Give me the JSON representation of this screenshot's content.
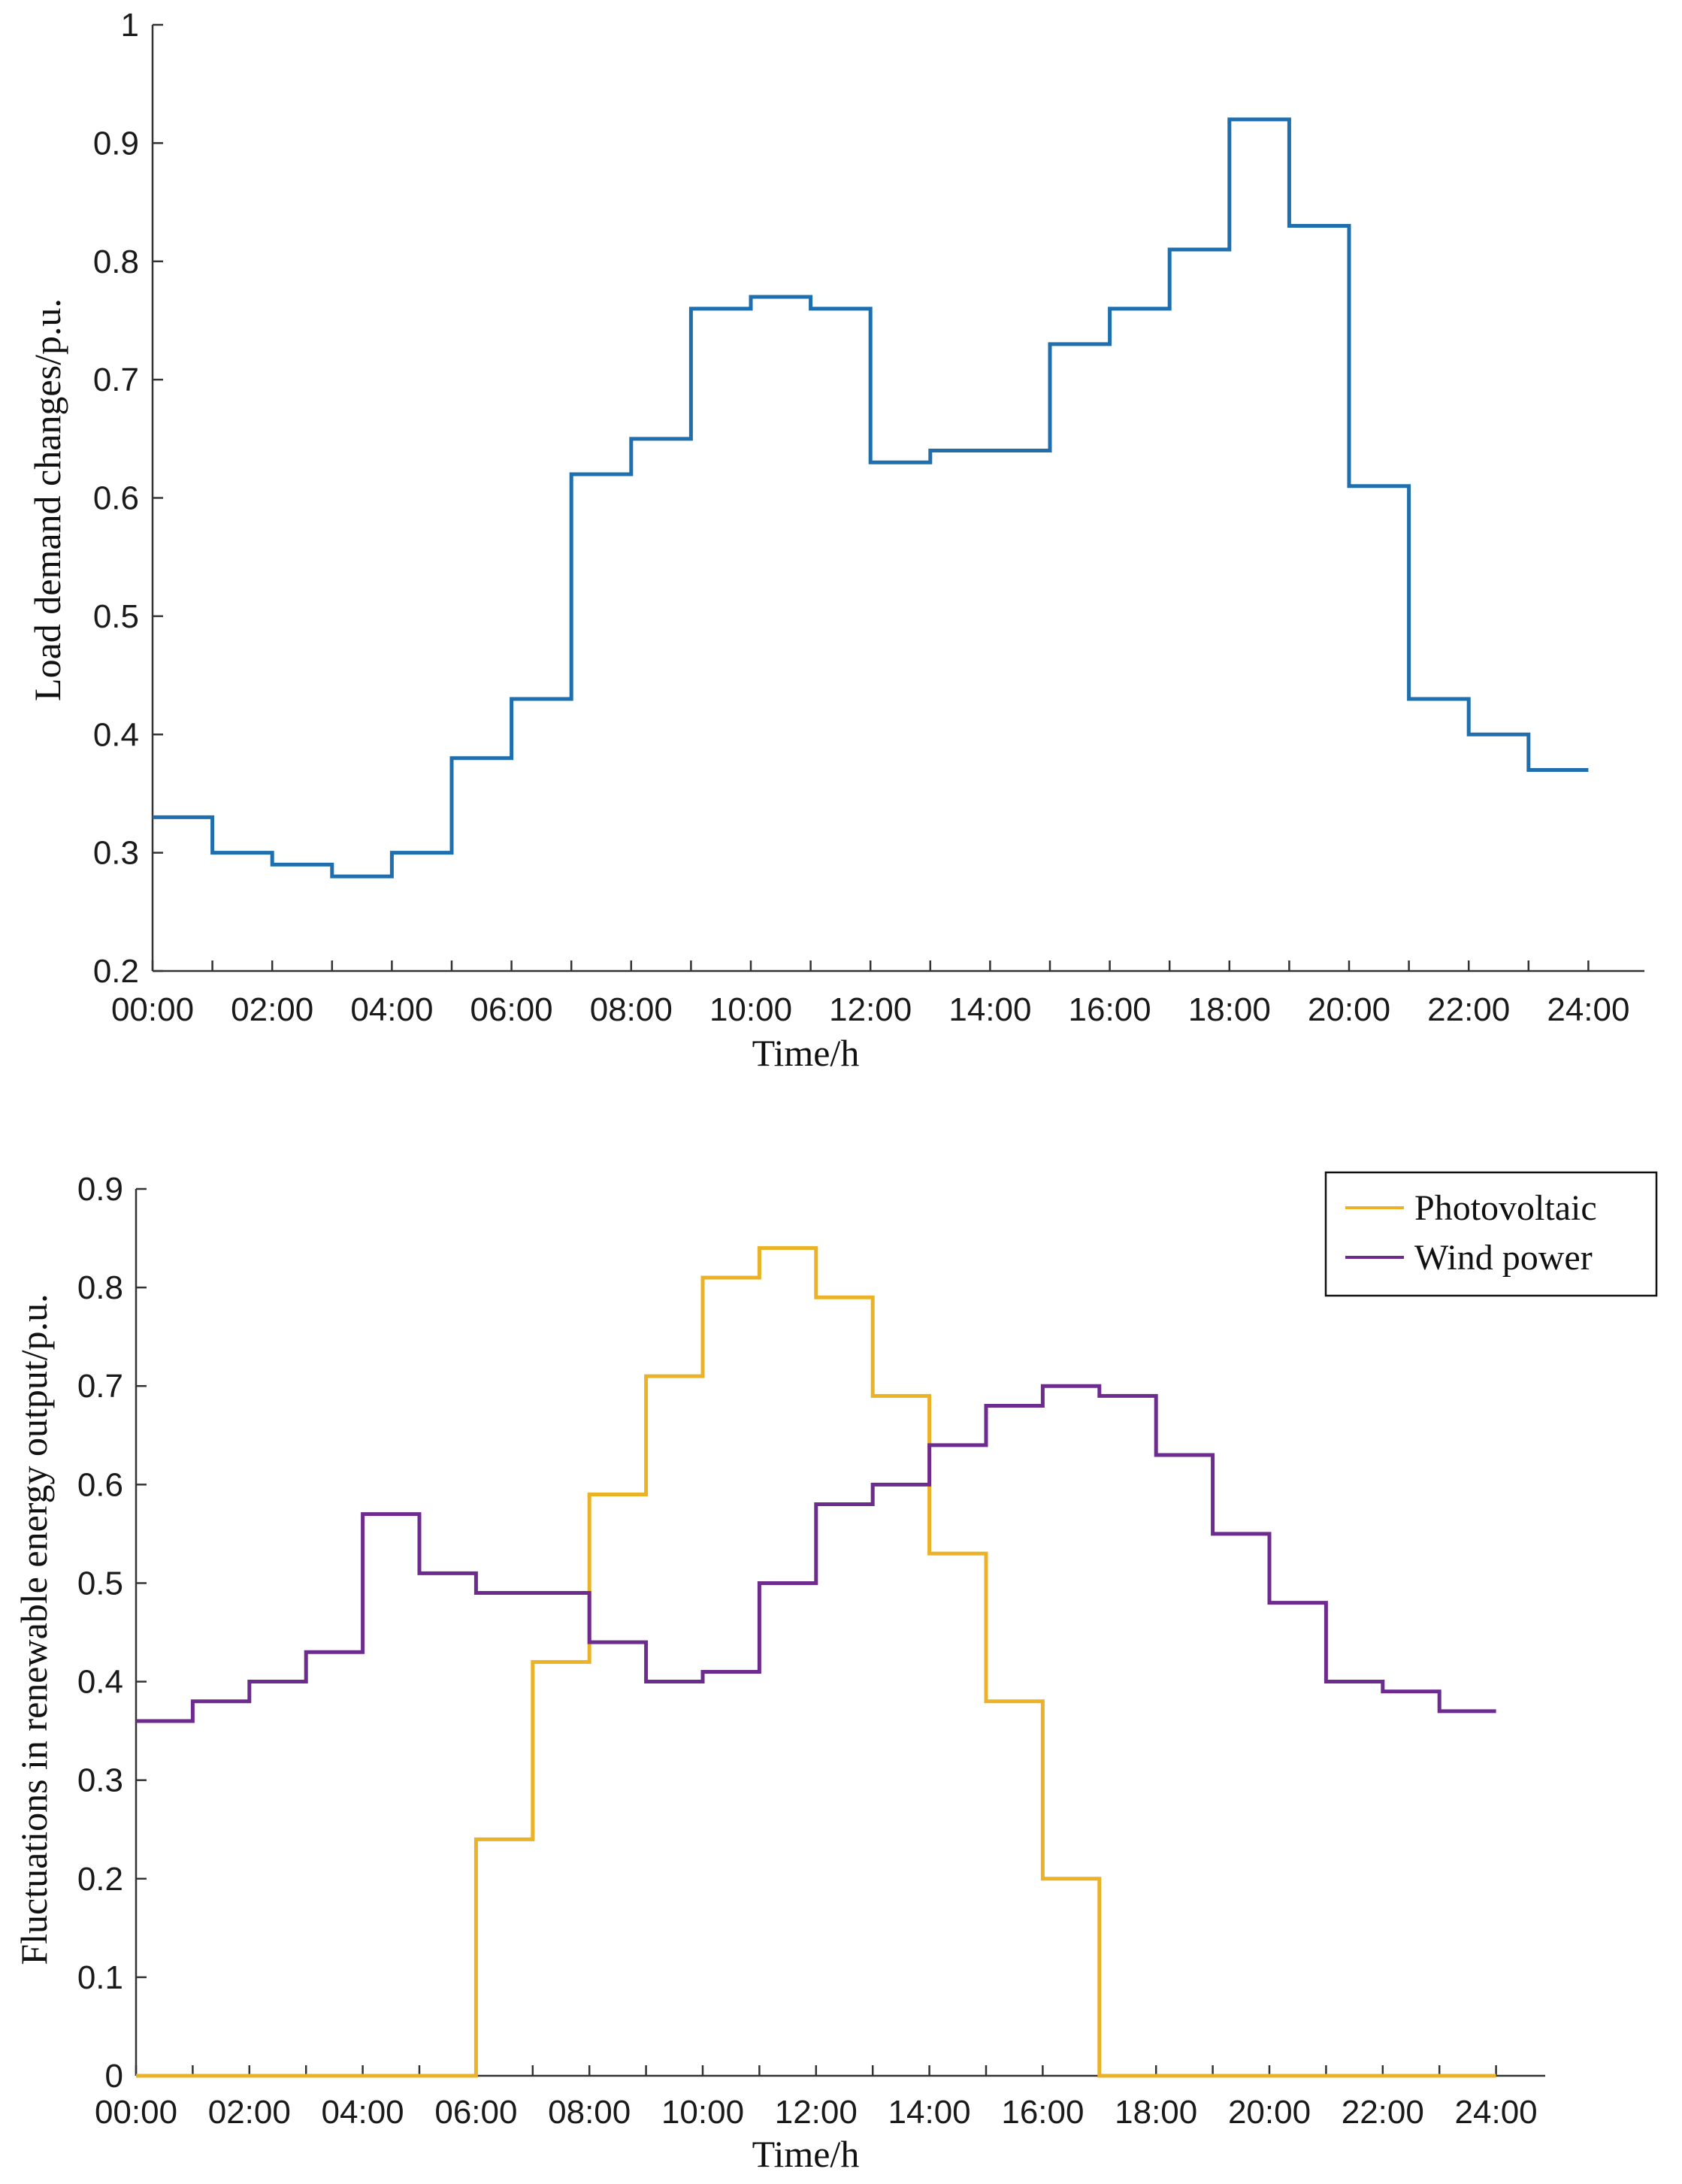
{
  "chart_data": [
    {
      "type": "line",
      "step": "post",
      "title": "",
      "xlabel": "Time/h",
      "ylabel": "Load demand changes/p.u.",
      "x_tick_labels": [
        "00:00",
        "02:00",
        "04:00",
        "06:00",
        "08:00",
        "10:00",
        "12:00",
        "14:00",
        "16:00",
        "18:00",
        "20:00",
        "22:00",
        "24:00"
      ],
      "xlim": [
        0,
        25
      ],
      "ylim": [
        0.2,
        1.0
      ],
      "y_ticks": [
        "0.2",
        "0.3",
        "0.4",
        "0.5",
        "0.6",
        "0.7",
        "0.8",
        "0.9",
        "1"
      ],
      "legend": null,
      "series": [
        {
          "name": "Load demand",
          "color": "#1f6fae",
          "hours": [
            0,
            1,
            2,
            3,
            4,
            5,
            6,
            7,
            8,
            9,
            10,
            11,
            12,
            13,
            14,
            15,
            16,
            17,
            18,
            19,
            20,
            21,
            22,
            23,
            24
          ],
          "values": [
            0.33,
            0.3,
            0.29,
            0.28,
            0.3,
            0.38,
            0.43,
            0.62,
            0.65,
            0.76,
            0.77,
            0.76,
            0.63,
            0.64,
            0.64,
            0.73,
            0.76,
            0.81,
            0.92,
            0.83,
            0.61,
            0.43,
            0.4,
            0.37,
            0.37
          ]
        }
      ]
    },
    {
      "type": "line",
      "step": "post",
      "title": "",
      "xlabel": "Time/h",
      "ylabel": "Fluctuations in renewable energy output/p.u.",
      "x_tick_labels": [
        "00:00",
        "02:00",
        "04:00",
        "06:00",
        "08:00",
        "10:00",
        "12:00",
        "14:00",
        "16:00",
        "18:00",
        "20:00",
        "22:00",
        "24:00"
      ],
      "xlim": [
        0,
        25
      ],
      "ylim": [
        0,
        0.9
      ],
      "y_ticks": [
        "0",
        "0.1",
        "0.2",
        "0.3",
        "0.4",
        "0.5",
        "0.6",
        "0.7",
        "0.8",
        "0.9"
      ],
      "legend": "top-right",
      "series": [
        {
          "name": "Photovoltaic",
          "color": "#e9b227",
          "hours": [
            0,
            1,
            2,
            3,
            4,
            5,
            6,
            7,
            8,
            9,
            10,
            11,
            12,
            13,
            14,
            15,
            16,
            17,
            18,
            19,
            20,
            21,
            22,
            23,
            24
          ],
          "values": [
            0,
            0,
            0,
            0,
            0,
            0,
            0.24,
            0.42,
            0.59,
            0.71,
            0.81,
            0.84,
            0.79,
            0.69,
            0.53,
            0.38,
            0.2,
            0,
            0,
            0,
            0,
            0,
            0,
            0,
            0
          ]
        },
        {
          "name": "Wind power",
          "color": "#6e2b8e",
          "hours": [
            0,
            1,
            2,
            3,
            4,
            5,
            6,
            7,
            8,
            9,
            10,
            11,
            12,
            13,
            14,
            15,
            16,
            17,
            18,
            19,
            20,
            21,
            22,
            23,
            24
          ],
          "values": [
            0.36,
            0.38,
            0.4,
            0.43,
            0.57,
            0.51,
            0.49,
            0.49,
            0.44,
            0.4,
            0.41,
            0.5,
            0.58,
            0.6,
            0.64,
            0.68,
            0.7,
            0.69,
            0.63,
            0.55,
            0.48,
            0.4,
            0.39,
            0.37,
            0.37
          ]
        }
      ]
    }
  ]
}
